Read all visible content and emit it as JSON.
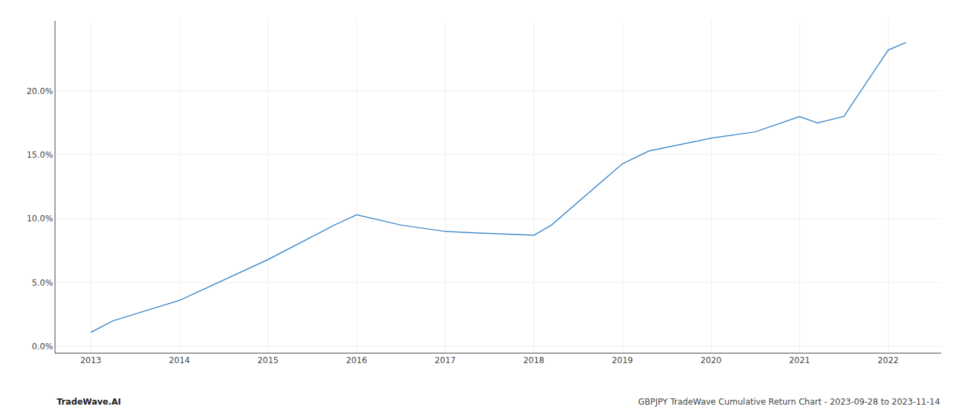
{
  "chart_data": {
    "type": "line",
    "x": [
      2013.0,
      2013.25,
      2014.0,
      2015.0,
      2015.75,
      2016.0,
      2016.5,
      2017.0,
      2017.3,
      2018.0,
      2018.2,
      2019.0,
      2019.3,
      2020.0,
      2020.5,
      2021.0,
      2021.2,
      2021.5,
      2022.0,
      2022.2
    ],
    "values": [
      1.1,
      2.0,
      3.6,
      6.8,
      9.5,
      10.3,
      9.5,
      9.0,
      8.9,
      8.7,
      9.5,
      14.3,
      15.3,
      16.3,
      16.8,
      18.0,
      17.5,
      18.0,
      23.2,
      23.8
    ],
    "color": "#3a86c8",
    "xlim": [
      2012.6,
      2022.6
    ],
    "xticks": [
      2013,
      2014,
      2015,
      2016,
      2017,
      2018,
      2019,
      2020,
      2021,
      2022
    ],
    "ylim": [
      -0.5,
      25.5
    ],
    "yticks": [
      {
        "value": 0.0,
        "label": "0.0%"
      },
      {
        "value": 5.0,
        "label": "5.0%"
      },
      {
        "value": 10.0,
        "label": "10.0%"
      },
      {
        "value": 15.0,
        "label": "15.0%"
      },
      {
        "value": 20.0,
        "label": "20.0%"
      }
    ],
    "grid": true,
    "annotations": [
      "TradeWave.AI",
      "GBPJPY TradeWave Cumulative Return Chart - 2023-09-28 to 2023-11-14"
    ]
  }
}
